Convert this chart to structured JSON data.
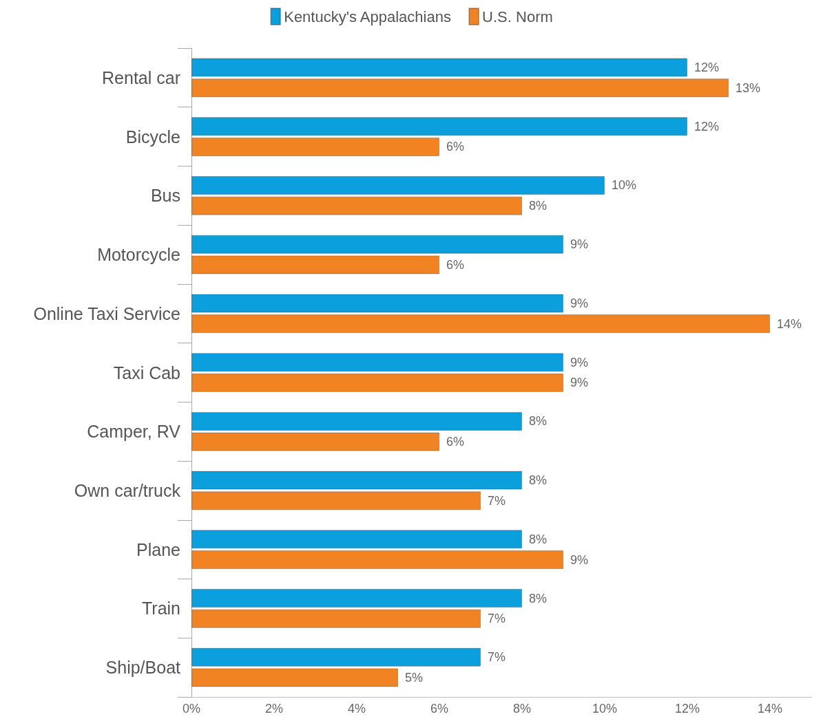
{
  "chart_data": {
    "type": "bar",
    "orientation": "horizontal",
    "categories": [
      "Rental car",
      "Bicycle",
      "Bus",
      "Motorcycle",
      "Online Taxi Service",
      "Taxi Cab",
      "Camper, RV",
      "Own car/truck",
      "Plane",
      "Train",
      "Ship/Boat"
    ],
    "series": [
      {
        "name": "Kentucky's Appalachians",
        "color": "#0ba0dd",
        "values": [
          12,
          12,
          10,
          9,
          9,
          9,
          8,
          8,
          8,
          8,
          7
        ],
        "value_labels": [
          "12%",
          "12%",
          "10%",
          "9%",
          "9%",
          "9%",
          "8%",
          "8%",
          "8%",
          "8%",
          "7%"
        ]
      },
      {
        "name": "U.S. Norm",
        "color": "#f28322",
        "values": [
          13,
          6,
          8,
          6,
          14,
          9,
          6,
          7,
          9,
          7,
          5
        ],
        "value_labels": [
          "13%",
          "6%",
          "8%",
          "6%",
          "14%",
          "9%",
          "6%",
          "7%",
          "9%",
          "7%",
          "5%"
        ]
      }
    ],
    "xlim": [
      0,
      15
    ],
    "xticks": [
      {
        "value": 0,
        "label": "0%"
      },
      {
        "value": 2,
        "label": "2%"
      },
      {
        "value": 4,
        "label": "4%"
      },
      {
        "value": 6,
        "label": "6%"
      },
      {
        "value": 8,
        "label": "8%"
      },
      {
        "value": 10,
        "label": "10%"
      },
      {
        "value": 12,
        "label": "12%"
      },
      {
        "value": 14,
        "label": "14%"
      }
    ],
    "grid": false,
    "legend": "top"
  }
}
